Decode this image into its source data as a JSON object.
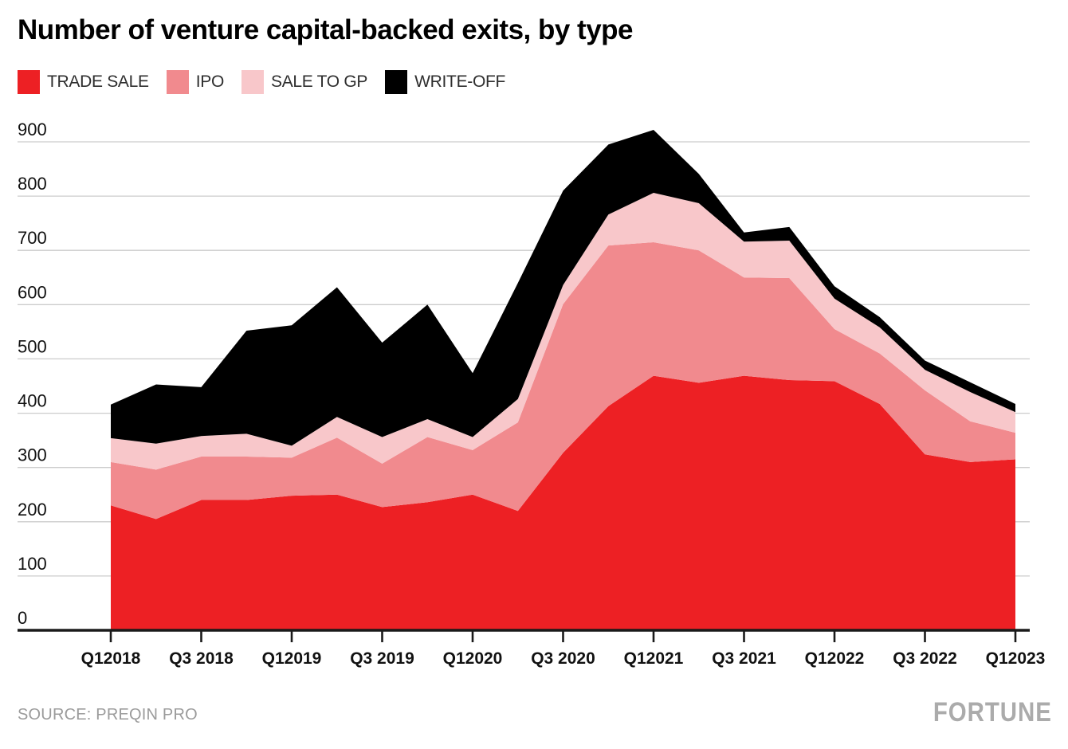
{
  "page": {
    "title": "Number of venture capital-backed exits, by type",
    "source": "SOURCE: PREQIN PRO",
    "brand": "FORTUNE"
  },
  "legend": [
    {
      "label": "TRADE SALE",
      "color": "#ed2024"
    },
    {
      "label": "IPO",
      "color": "#f18a8e"
    },
    {
      "label": "SALE TO GP",
      "color": "#f8c7ca"
    },
    {
      "label": "WRITE-OFF",
      "color": "#000000"
    }
  ],
  "colors": {
    "grid": "#cccccc",
    "axis": "#1a1a1a",
    "text": "#111111",
    "muted": "#9b9b9b",
    "brand_gray": "#ababab",
    "background": "#ffffff"
  },
  "chart_data": {
    "type": "area",
    "stacked": true,
    "title": "Number of venture capital-backed exits, by type",
    "xlabel": "",
    "ylabel": "",
    "ylim": [
      0,
      900
    ],
    "y_ticks": [
      0,
      100,
      200,
      300,
      400,
      500,
      600,
      700,
      800,
      900
    ],
    "grid": true,
    "legend_position": "top",
    "x": [
      "Q1 2018",
      "Q2 2018",
      "Q3 2018",
      "Q4 2018",
      "Q1 2019",
      "Q2 2019",
      "Q3 2019",
      "Q4 2019",
      "Q1 2020",
      "Q2 2020",
      "Q3 2020",
      "Q4 2020",
      "Q1 2021",
      "Q2 2021",
      "Q3 2021",
      "Q4 2021",
      "Q1 2022",
      "Q2 2022",
      "Q3 2022",
      "Q4 2022",
      "Q1 2023"
    ],
    "x_tick_labels": [
      "Q12018",
      "Q3 2018",
      "Q12019",
      "Q3 2019",
      "Q12020",
      "Q3 2020",
      "Q12021",
      "Q3 2021",
      "Q12022",
      "Q3 2022",
      "Q12023"
    ],
    "series": [
      {
        "name": "TRADE SALE",
        "color": "#ed2024",
        "values": [
          230,
          205,
          240,
          240,
          248,
          250,
          227,
          236,
          250,
          220,
          327,
          413,
          469,
          456,
          469,
          461,
          459,
          417,
          324,
          310,
          315
        ]
      },
      {
        "name": "IPO",
        "color": "#f18a8e",
        "values": [
          80,
          91,
          80,
          80,
          70,
          105,
          80,
          120,
          82,
          163,
          274,
          296,
          246,
          244,
          181,
          188,
          96,
          93,
          118,
          75,
          49
        ]
      },
      {
        "name": "SALE TO GP",
        "color": "#f8c7ca",
        "values": [
          44,
          48,
          38,
          42,
          22,
          38,
          49,
          33,
          24,
          43,
          35,
          57,
          91,
          87,
          66,
          69,
          56,
          48,
          38,
          54,
          38
        ]
      },
      {
        "name": "WRITE-OFF",
        "color": "#000000",
        "values": [
          62,
          109,
          90,
          190,
          222,
          239,
          174,
          211,
          118,
          214,
          174,
          129,
          116,
          54,
          17,
          25,
          23,
          19,
          17,
          18,
          15
        ]
      }
    ],
    "totals": [
      416,
      453,
      448,
      552,
      562,
      632,
      530,
      600,
      474,
      640,
      810,
      895,
      922,
      841,
      733,
      743,
      634,
      577,
      497,
      457,
      417
    ]
  }
}
